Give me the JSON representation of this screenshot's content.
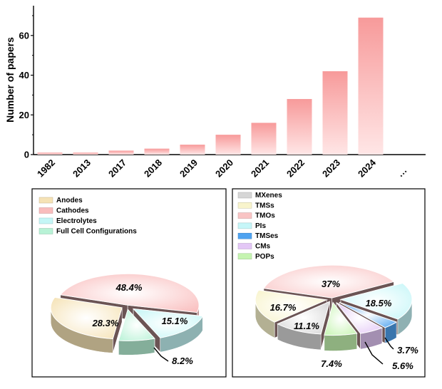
{
  "chart_data": [
    {
      "type": "bar",
      "title": "",
      "xlabel": "",
      "ylabel": "Number of papers",
      "ylim": [
        0,
        75
      ],
      "yticks": [
        "0",
        "20",
        "40",
        "60"
      ],
      "categories": [
        "1982",
        "2013",
        "2017",
        "2018",
        "2019",
        "2020",
        "2021",
        "2022",
        "2023",
        "2024"
      ],
      "values": [
        1,
        1,
        2,
        3,
        5,
        10,
        16,
        28,
        42,
        69
      ],
      "trailing_label": "···",
      "bar_color": "#f79a9a"
    },
    {
      "type": "pie",
      "legend_position": "top-left",
      "labels": [
        "Anodes",
        "Cathodes",
        "Electrolytes",
        "Full Cell Configurations"
      ],
      "values": [
        28.3,
        48.4,
        15.1,
        8.2
      ],
      "value_labels": [
        "28.3%",
        "48.4%",
        "15.1%",
        "8.2%"
      ],
      "colors": [
        "#f5e2b5",
        "#f9bcbc",
        "#c4f6f6",
        "#b8f2d6"
      ]
    },
    {
      "type": "pie",
      "legend_position": "top-left",
      "labels": [
        "MXenes",
        "TMSs",
        "TMOs",
        "PIs",
        "TMSes",
        "CMs",
        "POPs"
      ],
      "values": [
        11.1,
        16.7,
        37,
        18.5,
        3.7,
        5.6,
        7.4
      ],
      "value_labels": [
        "11.1%",
        "16.7%",
        "37%",
        "18.5%",
        "3.7%",
        "5.6%",
        "7.4%"
      ],
      "colors": [
        "#d6d6d6",
        "#f8f4cc",
        "#f9c4c4",
        "#c6f6f8",
        "#4fa3f0",
        "#e3c7f6",
        "#c5f4b0"
      ]
    }
  ]
}
